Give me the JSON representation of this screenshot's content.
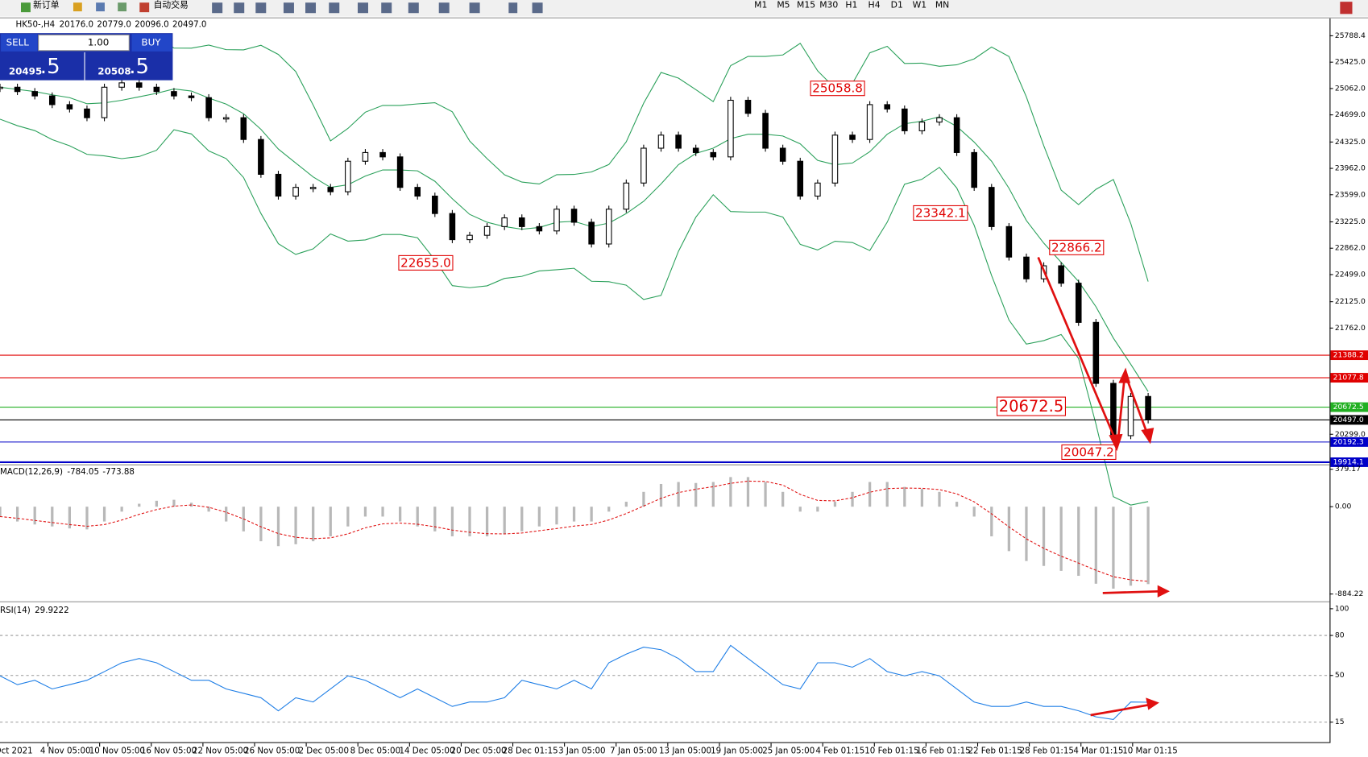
{
  "toolbar": {
    "new_order": "新订单",
    "auto_trading": "自动交易",
    "timeframes": [
      "M1",
      "M5",
      "M15",
      "M30",
      "H1",
      "H4",
      "D1",
      "W1",
      "MN"
    ]
  },
  "trade_panel": {
    "sell": "SELL",
    "lot": "1.00",
    "buy": "BUY",
    "sell_price": "20495",
    "sell_fraction": ".5",
    "buy_price": "20508",
    "buy_fraction": ".5"
  },
  "time_axis": {
    "labels": [
      "Oct 2021",
      "4 Nov 05:00",
      "10 Nov 05:00",
      "16 Nov 05:00",
      "22 Nov 05:00",
      "26 Nov 05:00",
      "2 Dec 05:00",
      "8 Dec 05:00",
      "14 Dec 05:00",
      "20 Dec 05:00",
      "28 Dec 01:15",
      "3 Jan 05:00",
      "7 Jan 05:00",
      "13 Jan 05:00",
      "19 Jan 05:00",
      "25 Jan 05:00",
      "4 Feb 01:15",
      "10 Feb 01:15",
      "16 Feb 01:15",
      "22 Feb 01:15",
      "28 Feb 01:15",
      "4 Mar 01:15",
      "10 Mar 01:15"
    ]
  },
  "chart_data": [
    {
      "type": "candlestick",
      "title": "HK50-,H4",
      "header_values": [
        "20176.0",
        "20779.0",
        "20096.0",
        "20497.0"
      ],
      "values": [
        25080,
        25020,
        24960,
        24840,
        24780,
        24660,
        25080,
        25140,
        25080,
        25020,
        24960,
        24936,
        24660,
        24660,
        24360,
        23880,
        23580,
        23700,
        23700,
        23640,
        24060,
        24180,
        24120,
        23700,
        23580,
        23340,
        22980,
        23040,
        23160,
        23280,
        23160,
        23100,
        23400,
        23220,
        22920,
        23400,
        23760,
        24240,
        24420,
        24240,
        24180,
        24120,
        24900,
        24720,
        24240,
        24060,
        23580,
        23760,
        24420,
        24360,
        24840,
        24780,
        24480,
        24600,
        24660,
        24180,
        23700,
        23160,
        22740,
        22440,
        22620,
        22380,
        21840,
        21000,
        20280,
        20820,
        20497
      ],
      "ylim": [
        19890,
        26017
      ],
      "yticks": [
        25788.4,
        {
          "value": 25425,
          "label": "25425.0"
        },
        {
          "value": 25062,
          "label": "25062.0"
        },
        {
          "value": 24699,
          "label": "24699.0"
        },
        {
          "value": 24325,
          "label": "24325.0"
        },
        {
          "value": 23962,
          "label": "23962.0"
        },
        {
          "value": 23599,
          "label": "23599.0"
        },
        {
          "value": 23225,
          "label": "23225.0"
        },
        {
          "value": 22862,
          "label": "22862.0"
        },
        {
          "value": 22499,
          "label": "22499.0"
        },
        {
          "value": 22125,
          "label": "22125.0"
        },
        {
          "value": 21762,
          "label": "21762.0"
        },
        {
          "value": 20299,
          "label": "20299.0"
        }
      ],
      "levels": [
        {
          "value": 21388.2,
          "color": "#e00000"
        },
        {
          "value": 21077.8,
          "color": "#e00000"
        },
        {
          "value": 20672.5,
          "color": "#22b022"
        },
        {
          "value": 20497,
          "label": "20497.0",
          "color": "#000000"
        },
        {
          "value": 20192.3,
          "color": "#0000c8"
        },
        {
          "value": 19914.1,
          "color": "#0000c8"
        }
      ],
      "annotations": [
        25058.8,
        23342.1,
        {
          "value": 22655,
          "label": "22655.0"
        },
        22866.2,
        20672.5,
        20047.2
      ]
    },
    {
      "type": "bar",
      "title": "MACD(12,26,9)",
      "header_values": [
        -784.05,
        -773.88
      ],
      "values": [
        -100,
        -150,
        -180,
        -200,
        -220,
        -230,
        -150,
        -50,
        30,
        60,
        70,
        40,
        -50,
        -150,
        -250,
        -350,
        -400,
        -380,
        -350,
        -300,
        -200,
        -100,
        -100,
        -150,
        -200,
        -250,
        -300,
        -300,
        -300,
        -280,
        -250,
        -200,
        -180,
        -150,
        -150,
        -50,
        50,
        150,
        230,
        250,
        240,
        250,
        300,
        300,
        250,
        150,
        -50,
        -50,
        50,
        150,
        250,
        250,
        200,
        180,
        150,
        50,
        -100,
        -300,
        -450,
        -550,
        -600,
        -650,
        -700,
        -780,
        -830,
        -800,
        -784.05
      ],
      "ylim": [
        -954,
        415
      ],
      "yticks": [
        379.17,
        {
          "value": 0,
          "label": "0.00"
        },
        -884.22
      ]
    },
    {
      "type": "line",
      "title": "RSI(14)",
      "header_values": [
        29.9222
      ],
      "values": [
        49.7,
        43.1,
        46.4,
        39.9,
        43.1,
        46.4,
        52.9,
        59.5,
        62.7,
        59.5,
        52.9,
        46.4,
        46.4,
        39.9,
        36.6,
        33.3,
        23.5,
        33.3,
        30.1,
        39.9,
        49.7,
        46.4,
        39.9,
        33.3,
        39.9,
        33.3,
        26.8,
        30.1,
        30.1,
        33.3,
        46.4,
        43.1,
        39.9,
        46.4,
        39.9,
        59.5,
        66.0,
        71.2,
        69.3,
        62.7,
        52.9,
        52.9,
        72.5,
        62.7,
        52.9,
        43.1,
        39.9,
        59.5,
        59.5,
        56.2,
        62.7,
        52.9,
        49.7,
        52.9,
        49.7,
        39.9,
        30.1,
        26.8,
        26.8,
        30.1,
        26.8,
        26.8,
        23.5,
        19.0,
        17.0,
        30.1,
        29.9222
      ],
      "ylim": [
        0,
        100
      ],
      "yticks": [
        100,
        80,
        50,
        15
      ],
      "color": "#1e7ee6"
    }
  ]
}
